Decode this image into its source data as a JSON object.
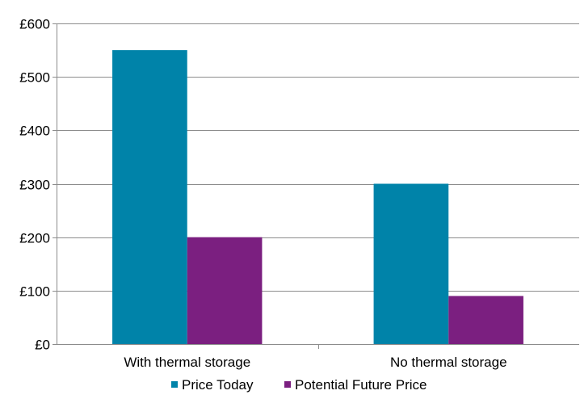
{
  "chart_data": {
    "type": "bar",
    "title": "",
    "xlabel": "",
    "ylabel": "",
    "categories": [
      "With thermal storage",
      "No thermal storage"
    ],
    "series": [
      {
        "name": "Price Today",
        "values": [
          550,
          300
        ],
        "color": "#0083A9"
      },
      {
        "name": "Potential Future Price",
        "values": [
          200,
          90
        ],
        "color": "#7B1F80"
      }
    ],
    "ylim": [
      0,
      600
    ],
    "yticks": [
      0,
      100,
      200,
      300,
      400,
      500,
      600
    ],
    "ytick_labels": [
      "£0",
      "£100",
      "£200",
      "£300",
      "£400",
      "£500",
      "£600"
    ],
    "grid": true,
    "legend_position": "bottom"
  }
}
